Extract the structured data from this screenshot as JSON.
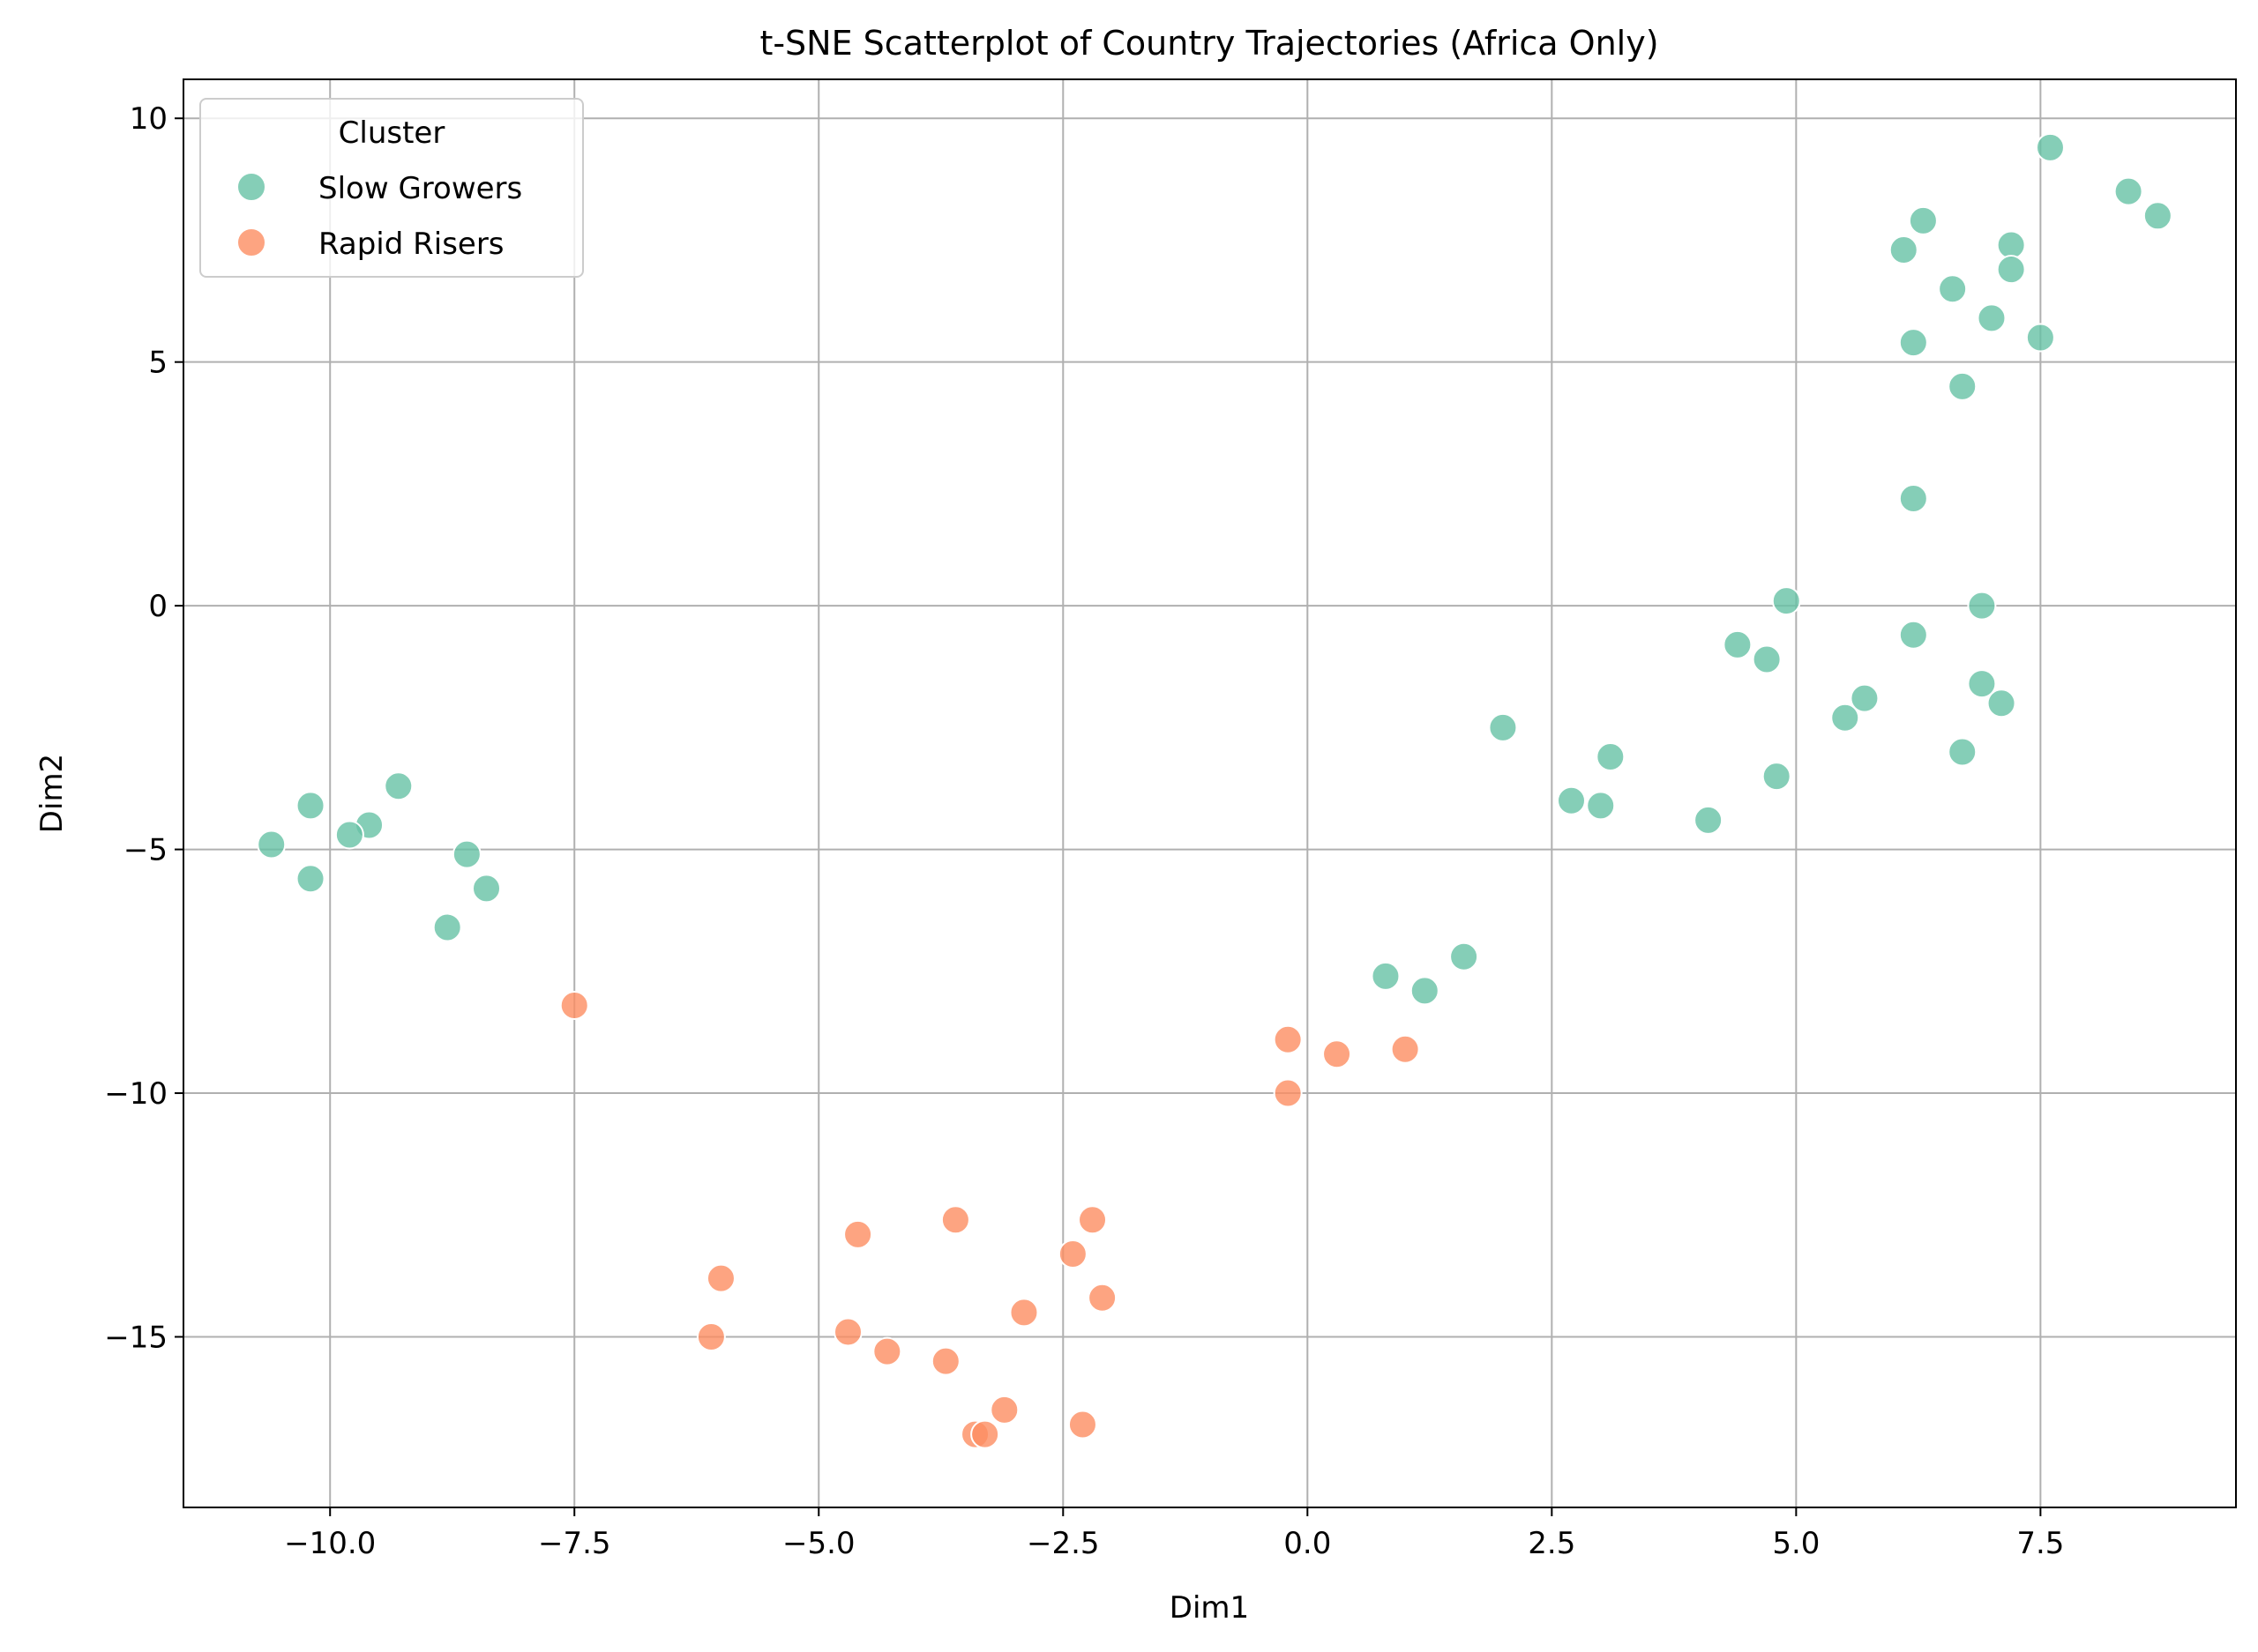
{
  "chart_data": {
    "type": "scatter",
    "title": "t-SNE Scatterplot of Country Trajectories (Africa Only)",
    "xlabel": "Dim1",
    "ylabel": "Dim2",
    "xlim": [
      -11.5,
      9.5
    ],
    "ylim": [
      -18.5,
      10.8
    ],
    "xticks": [
      -10.0,
      -7.5,
      -5.0,
      -2.5,
      0.0,
      2.5,
      5.0,
      7.5
    ],
    "xtick_labels": [
      "−10.0",
      "−7.5",
      "−5.0",
      "−2.5",
      "0.0",
      "2.5",
      "5.0",
      "7.5"
    ],
    "yticks": [
      10,
      5,
      0,
      -5,
      -10,
      -15
    ],
    "ytick_labels": [
      "10",
      "5",
      "0",
      "−5",
      "−10",
      "−15"
    ],
    "grid": true,
    "legend": {
      "title": "Cluster",
      "placement": "top-left"
    },
    "series": [
      {
        "name": "Slow Growers",
        "color": "#66c2a5",
        "points": [
          [
            7.6,
            9.4
          ],
          [
            8.4,
            8.5
          ],
          [
            8.7,
            8.0
          ],
          [
            6.3,
            7.9
          ],
          [
            7.2,
            7.4
          ],
          [
            6.1,
            7.3
          ],
          [
            7.2,
            6.9
          ],
          [
            6.6,
            6.5
          ],
          [
            7.0,
            5.9
          ],
          [
            6.2,
            5.4
          ],
          [
            7.5,
            5.5
          ],
          [
            6.7,
            4.5
          ],
          [
            6.2,
            2.2
          ],
          [
            4.9,
            0.1
          ],
          [
            6.9,
            0.0
          ],
          [
            6.2,
            -0.6
          ],
          [
            4.4,
            -0.8
          ],
          [
            4.7,
            -1.1
          ],
          [
            6.9,
            -1.6
          ],
          [
            5.7,
            -1.9
          ],
          [
            7.1,
            -2.0
          ],
          [
            5.5,
            -2.3
          ],
          [
            2.0,
            -2.5
          ],
          [
            3.1,
            -3.1
          ],
          [
            6.7,
            -3.0
          ],
          [
            4.8,
            -3.5
          ],
          [
            2.7,
            -4.0
          ],
          [
            3.0,
            -4.1
          ],
          [
            4.1,
            -4.4
          ],
          [
            -9.3,
            -3.7
          ],
          [
            -10.2,
            -4.1
          ],
          [
            -9.6,
            -4.5
          ],
          [
            -9.8,
            -4.7
          ],
          [
            -10.6,
            -4.9
          ],
          [
            -8.6,
            -5.1
          ],
          [
            -10.2,
            -5.6
          ],
          [
            -8.4,
            -5.8
          ],
          [
            -8.8,
            -6.6
          ],
          [
            1.6,
            -7.2
          ],
          [
            0.8,
            -7.6
          ],
          [
            1.2,
            -7.9
          ]
        ]
      },
      {
        "name": "Rapid Risers",
        "color": "#fc8d62",
        "points": [
          [
            -7.5,
            -8.2
          ],
          [
            -0.2,
            -8.9
          ],
          [
            0.3,
            -9.2
          ],
          [
            1.0,
            -9.1
          ],
          [
            -0.2,
            -10.0
          ],
          [
            -3.6,
            -12.6
          ],
          [
            -2.2,
            -12.6
          ],
          [
            -4.6,
            -12.9
          ],
          [
            -2.4,
            -13.3
          ],
          [
            -6.0,
            -13.8
          ],
          [
            -2.1,
            -14.2
          ],
          [
            -2.9,
            -14.5
          ],
          [
            -4.7,
            -14.9
          ],
          [
            -6.1,
            -15.0
          ],
          [
            -4.3,
            -15.3
          ],
          [
            -3.7,
            -15.5
          ],
          [
            -3.1,
            -16.5
          ],
          [
            -2.3,
            -16.8
          ],
          [
            -3.4,
            -17.0
          ],
          [
            -3.3,
            -17.0
          ]
        ]
      }
    ]
  }
}
